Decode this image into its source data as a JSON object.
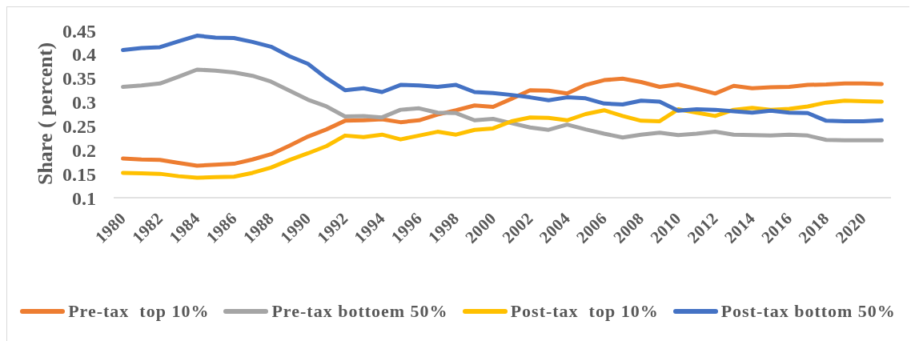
{
  "chart_data": {
    "type": "line",
    "ylabel": "Share ( percent)",
    "categories": [
      "1980",
      null,
      "1982",
      null,
      "1984",
      null,
      "1986",
      null,
      "1988",
      null,
      "1990",
      null,
      "1992",
      null,
      "1994",
      null,
      "1996",
      null,
      "1998",
      null,
      "2000",
      null,
      "2002",
      null,
      "2004",
      null,
      "2006",
      null,
      "2008",
      null,
      "2010",
      null,
      "2012",
      null,
      "2014",
      null,
      "2016",
      null,
      "2018",
      null,
      "2020",
      null
    ],
    "series": [
      {
        "name": "Pre-tax  top 10%",
        "color": "#ed7d31",
        "values": [
          0.182,
          0.18,
          0.179,
          0.173,
          0.167,
          0.169,
          0.171,
          0.18,
          0.191,
          0.209,
          0.228,
          0.243,
          0.261,
          0.262,
          0.264,
          0.258,
          0.262,
          0.274,
          0.283,
          0.293,
          0.29,
          0.307,
          0.325,
          0.324,
          0.318,
          0.336,
          0.346,
          0.349,
          0.342,
          0.332,
          0.337,
          0.328,
          0.318,
          0.334,
          0.329,
          0.331,
          0.332,
          0.336,
          0.337,
          0.339,
          0.339,
          0.338
        ]
      },
      {
        "name": "Pre-tax bottoem 50%",
        "color": "#a5a5a5",
        "values": [
          0.332,
          0.335,
          0.339,
          0.353,
          0.368,
          0.366,
          0.362,
          0.355,
          0.343,
          0.324,
          0.305,
          0.291,
          0.27,
          0.271,
          0.268,
          0.284,
          0.287,
          0.278,
          0.277,
          0.262,
          0.265,
          0.256,
          0.247,
          0.242,
          0.253,
          0.243,
          0.234,
          0.226,
          0.232,
          0.236,
          0.231,
          0.234,
          0.238,
          0.232,
          0.231,
          0.23,
          0.232,
          0.23,
          0.221,
          0.22,
          0.22,
          0.22
        ]
      },
      {
        "name": "Post-tax  top 10%",
        "color": "#ffc000",
        "values": [
          0.152,
          0.151,
          0.15,
          0.145,
          0.142,
          0.143,
          0.144,
          0.152,
          0.163,
          0.179,
          0.193,
          0.208,
          0.23,
          0.227,
          0.232,
          0.222,
          0.23,
          0.238,
          0.232,
          0.242,
          0.245,
          0.26,
          0.268,
          0.267,
          0.262,
          0.275,
          0.283,
          0.271,
          0.261,
          0.26,
          0.285,
          0.278,
          0.271,
          0.284,
          0.288,
          0.284,
          0.286,
          0.291,
          0.299,
          0.303,
          0.302,
          0.301
        ]
      },
      {
        "name": "Post-tax bottom 50%",
        "color": "#4472c4",
        "values": [
          0.409,
          0.413,
          0.415,
          0.427,
          0.439,
          0.435,
          0.434,
          0.426,
          0.416,
          0.396,
          0.38,
          0.35,
          0.325,
          0.329,
          0.321,
          0.336,
          0.335,
          0.332,
          0.336,
          0.321,
          0.319,
          0.315,
          0.31,
          0.304,
          0.31,
          0.308,
          0.297,
          0.295,
          0.303,
          0.301,
          0.282,
          0.285,
          0.284,
          0.281,
          0.278,
          0.282,
          0.278,
          0.277,
          0.261,
          0.26,
          0.26,
          0.262
        ]
      }
    ],
    "ylim": [
      0.1,
      0.45
    ],
    "yticks": [
      0.1,
      0.15,
      0.2,
      0.25,
      0.3,
      0.35,
      0.4,
      0.45
    ],
    "legend": "bottom",
    "marker": "none",
    "line_style": "solid"
  }
}
